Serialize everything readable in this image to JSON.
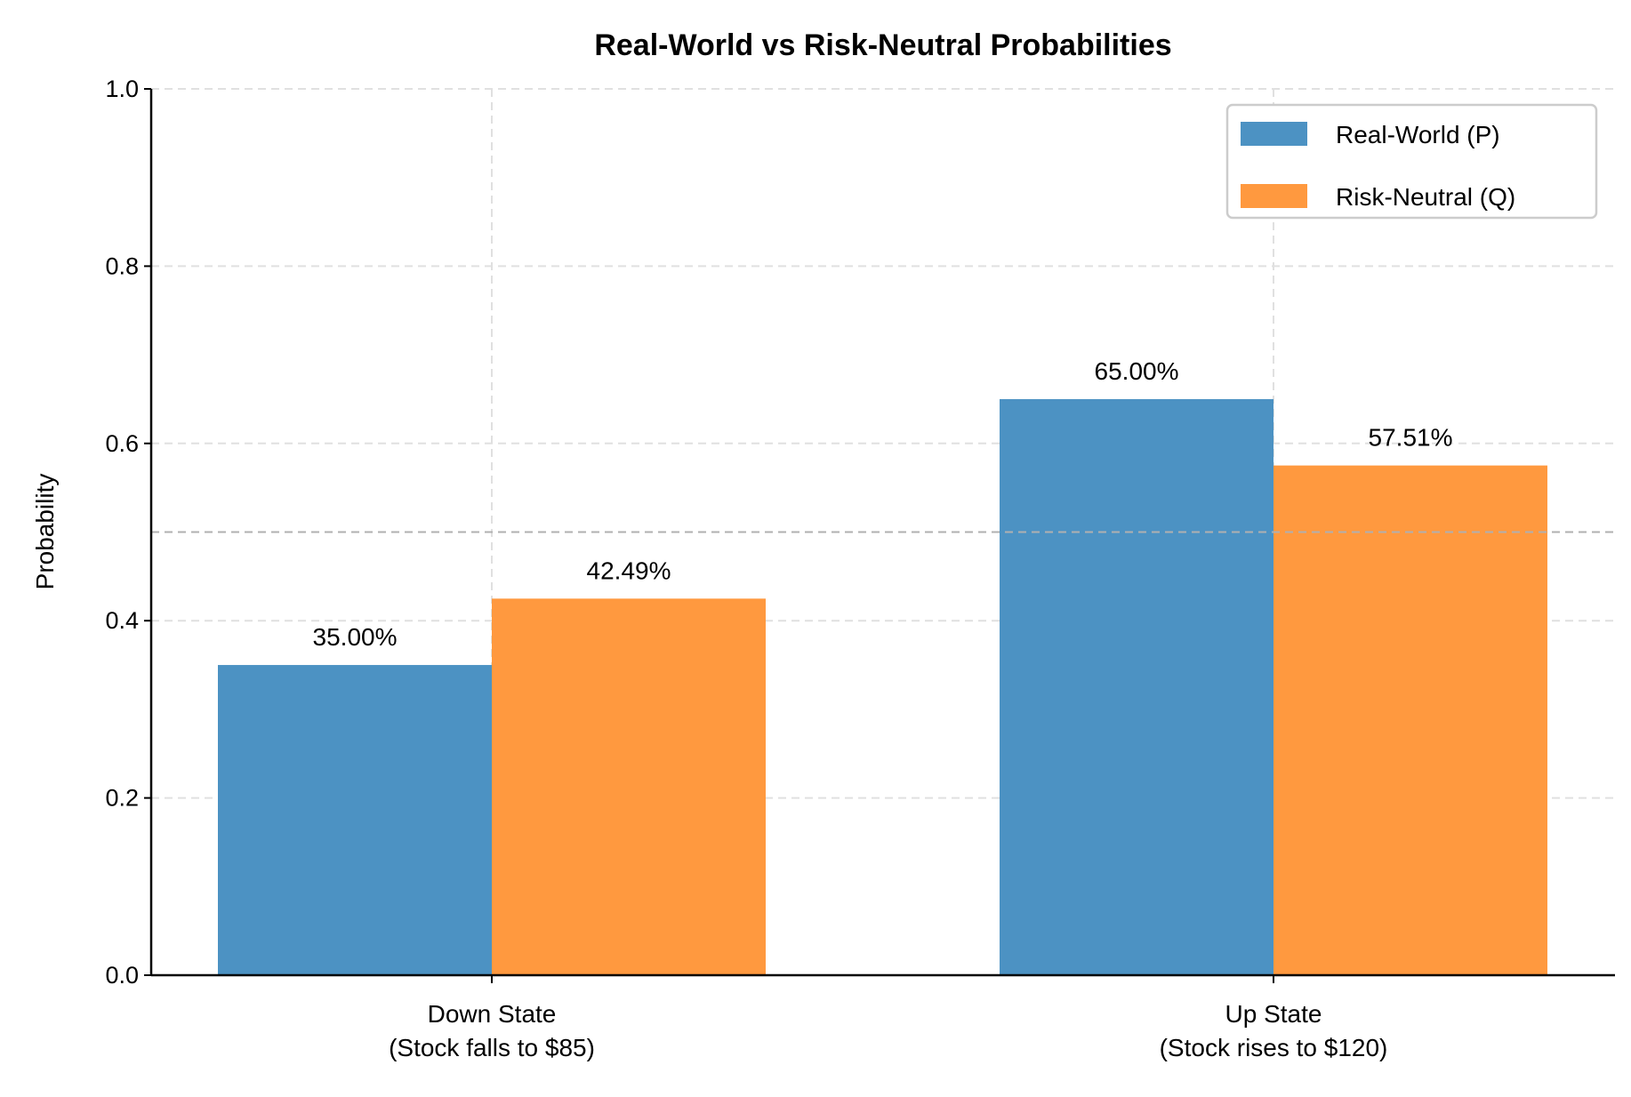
{
  "chart_data": {
    "type": "bar",
    "title": "Real-World vs Risk-Neutral Probabilities",
    "xlabel": "",
    "ylabel": "Probability",
    "ylim": [
      0,
      1.0
    ],
    "yticks": [
      "0.0",
      "0.2",
      "0.4",
      "0.6",
      "0.8",
      "1.0"
    ],
    "categories": [
      [
        "Down State",
        "(Stock falls to $85)"
      ],
      [
        "Up State",
        "(Stock rises to $120)"
      ]
    ],
    "series": [
      {
        "name": "Real-World (P)",
        "color": "#4c92c3",
        "values": [
          0.35,
          0.65
        ],
        "labels": [
          "35.00%",
          "65.00%"
        ]
      },
      {
        "name": "Risk-Neutral (Q)",
        "color": "#ff993f",
        "values": [
          0.4249,
          0.5751
        ],
        "labels": [
          "42.49%",
          "57.51%"
        ]
      }
    ],
    "reference_line": {
      "y": 0.5,
      "color": "#b0b0b0",
      "style": "dashed"
    },
    "grid": true,
    "legend_position": "top-right"
  }
}
